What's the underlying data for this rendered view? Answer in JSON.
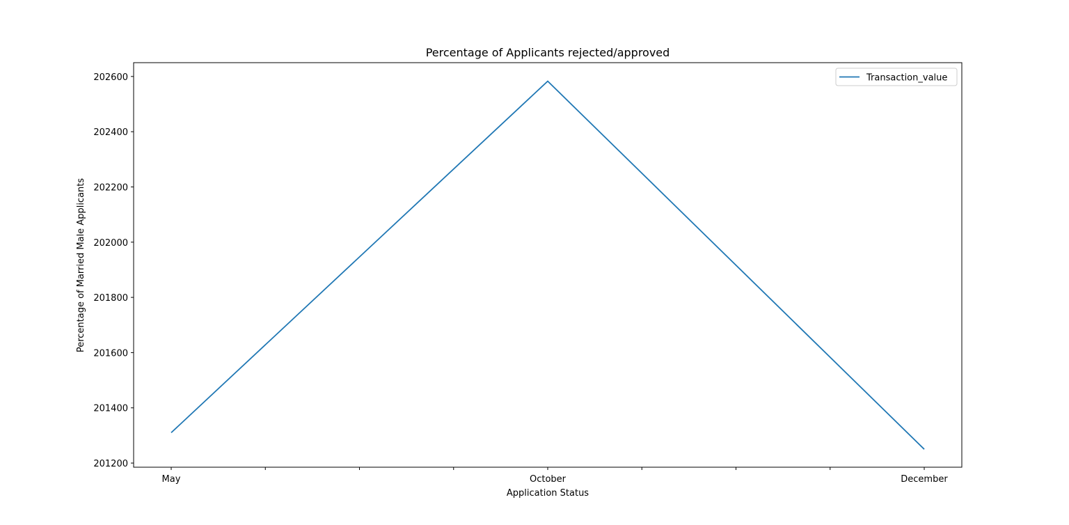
{
  "chart_data": {
    "type": "line",
    "title": "Percentage of Applicants rejected/approved",
    "xlabel": "Application Status",
    "ylabel": "Percentage of Married Male Applicants",
    "categories": [
      "May",
      "October",
      "December"
    ],
    "x_tick_labels": [
      "May",
      "",
      "",
      "",
      "October",
      "",
      "",
      "",
      "December"
    ],
    "y_ticks": [
      201200,
      201400,
      201600,
      201800,
      202000,
      202200,
      202400,
      202600
    ],
    "ylim": [
      201185,
      202650
    ],
    "grid": false,
    "legend_position": "top-right",
    "series": [
      {
        "name": "Transaction_value",
        "color": "#1f77b4",
        "values": [
          201310,
          202583,
          201250
        ]
      }
    ]
  }
}
